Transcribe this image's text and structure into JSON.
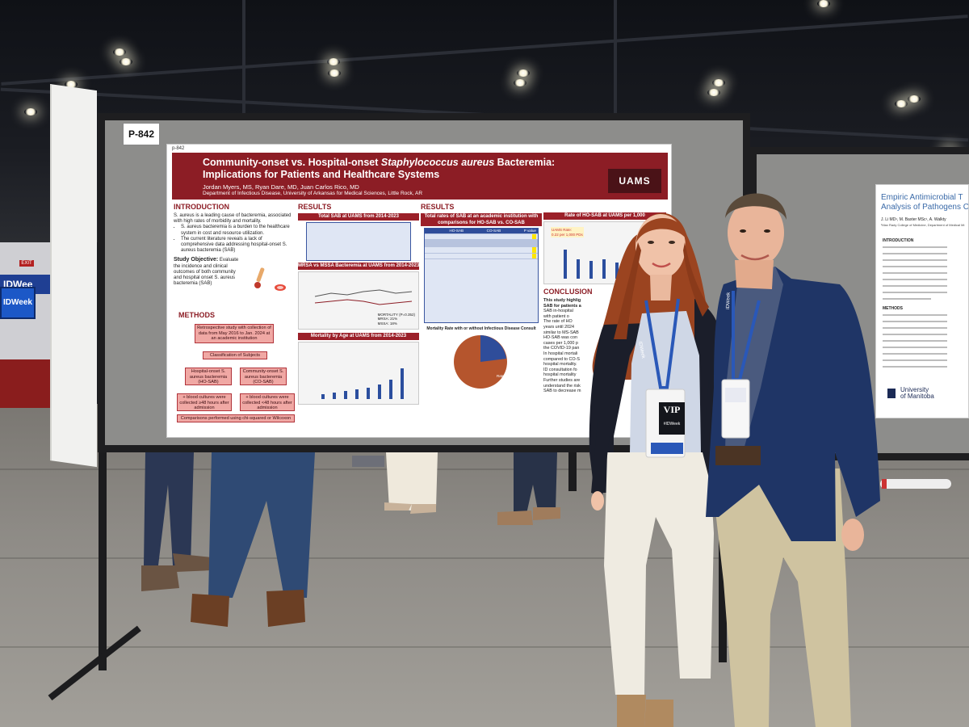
{
  "scene": {
    "venue_banner": "IDWee",
    "venue_screen": "IDWeek",
    "exit_sign": "EXIT"
  },
  "board": {
    "number": "P-842"
  },
  "poster": {
    "id_label": "p-842",
    "title_line1_a": "Community-onset vs. Hospital-onset ",
    "title_line1_b": "Staphylococcus aureus",
    "title_line1_c": " Bacteremia:",
    "title_line2": "Implications for Patients and Healthcare Systems",
    "authors": "Jordan Myers, MS, Ryan Dare, MD, Juan Carlos Rico, MD",
    "affiliation": "Department of Infectious Disease, University of Arkansas for Medical Sciences, Little Rock, AR",
    "logo": "UAMS",
    "introduction": {
      "heading": "INTRODUCTION",
      "para1": "S. aureus is a leading cause of bacteremia, associated with high rates of morbidity and mortality.",
      "bullet1": "S. aureus bacteremia is a burden to the healthcare system in cost and resource utilization.",
      "bullet2": "The current literature reveals a lack of comprehensive data addressing hospital-onset S. aureus bacteremia (SAB)",
      "study_obj_label": "Study Objective:",
      "study_obj_text": " Evaluate the incidence and clinical outcomes of both community and hospital onset S. aureus bacteremia (SAB)"
    },
    "methods": {
      "heading": "METHODS",
      "box1": "Retrospective study with collection of data from May 2016 to Jan. 2024 at an academic institution",
      "box2": "Classification of Subjects",
      "box3": "Hospital-onset S. aureus bacteremia (HO-SAB)",
      "box4": "Community-onset S. aureus bacteremia (CO-SAB)",
      "box5": "+ blood cultures were collected ≥48 hours after admission",
      "box6": "+ blood cultures were collected <48 hours after admission",
      "box7": "Comparisons performed using chi-squared or Wilcoxon rank sum tests"
    },
    "results1": {
      "heading": "RESULTS",
      "table1_title": "Total SAB at UAMS from 2014-2023",
      "chart1_title": "MRSA vs MSSA Bacteremia at UAMS from 2014-2023",
      "chart1_legend": "MORTALITY (P=0.352)",
      "chart1_legend2": "MRSA: 21%",
      "chart1_legend3": "MSSA: 18%",
      "chart2_title": "Mortality by Age at UAMS from 2014-2023"
    },
    "results2": {
      "heading": "RESULTS",
      "table_title": "Total rates of SAB at an academic institution with comparisons for HO-SAB vs. CO-SAB",
      "col_a": "HO-SAB",
      "col_b": "CO-SAB",
      "col_c": "P value",
      "pie_title": "Mortality Rate with or without Infectious Disease Consult",
      "pie_rate1": "Rate: 16.20%",
      "pie_rate2": "Rate: 39.80%"
    },
    "results3": {
      "chart_title": "Rate of HO-SAB at UAMS per 1,000",
      "chart_note_l1": "UAMS Rate:",
      "chart_note_l2": "0.22 per 1,000 PDs",
      "conclusion_heading": "CONCLUSION",
      "c1": "This study highlig",
      "c2": "SAB for patients a",
      "c3": "SAB in-hospital",
      "c4": "with patient o",
      "c5": "The rate of HO",
      "c6": "years until 2024",
      "c7": "similar to MS-SAB",
      "c8": "HO-SAB was con",
      "c9": "cases per 1,000 p",
      "c10": "the COVID-19 pan",
      "c11": "In hospital mortali",
      "c12": "compared to CO-S",
      "c13": "hospital mortality.",
      "c14": "ID consultation fo",
      "c15": "hospital mortality",
      "c16": "Further studies are",
      "c17": "understand the risk",
      "c18": "SAB to decrease m"
    }
  },
  "right_poster": {
    "title_l1": "Empiric Antimicrobial T",
    "title_l2": "Analysis of Pathogens C",
    "authors": "J. Li MD¹, M. Baxter MSc¹, A. Walkty",
    "affiliation": "¹Max Rady College of Medicine, Department of Medical Mi",
    "intro_head": "INTRODUCTION",
    "methods_head": "METHODS",
    "logo_l1": "University",
    "logo_l2": "of Manitoba"
  },
  "badges": {
    "woman_badge": "VIP",
    "woman_badge_sub": "#IDWeek",
    "woman_lanyard": "IDWeek",
    "man_lanyard": "IDWeek"
  }
}
